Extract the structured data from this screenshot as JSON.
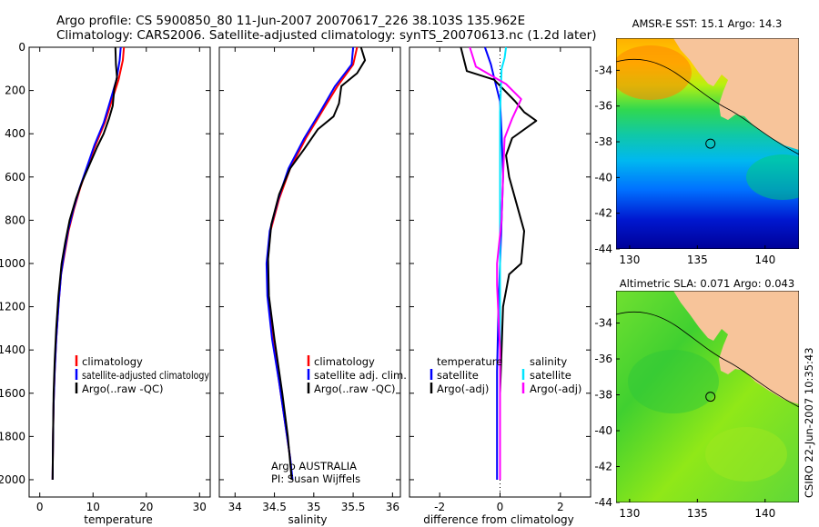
{
  "header": {
    "line1": "Argo profile: CS 5900850_80 11-Jun-2007 20070617_226 38.103S 135.962E",
    "line2": "Climatology: CARS2006. Satellite-adjusted climatology: synTS_20070613.nc (1.2d later)"
  },
  "colors": {
    "climatology": "#ff0000",
    "satellite": "#0000ff",
    "argo": "#000000",
    "salinity_sat": "#00e5ff",
    "salinity_argo": "#ff00ff"
  },
  "chart_data": [
    {
      "id": "temperature",
      "type": "line",
      "xlabel": "temperature",
      "xlim": [
        -2,
        32
      ],
      "ylim": [
        0,
        2080
      ],
      "xticks": [
        0,
        10,
        20,
        30
      ],
      "yticks": [
        0,
        200,
        400,
        600,
        800,
        1000,
        1200,
        1400,
        1600,
        1800,
        2000
      ],
      "series": [
        {
          "name": "climatology",
          "color": "#ff0000",
          "x": [
            15.8,
            15.6,
            14.8,
            13.5,
            12.2,
            10.5,
            9.0,
            7.6,
            6.4,
            5.4,
            4.7,
            4.0,
            3.5,
            3.1,
            2.8,
            2.6,
            2.5,
            2.4
          ],
          "y": [
            0,
            60,
            150,
            250,
            350,
            450,
            550,
            650,
            750,
            850,
            950,
            1050,
            1200,
            1350,
            1500,
            1650,
            1800,
            2000
          ]
        },
        {
          "name": "satellite-adjusted climatology",
          "color": "#0000ff",
          "x": [
            15.2,
            15.0,
            14.4,
            13.2,
            12.0,
            10.3,
            8.9,
            7.5,
            6.3,
            5.3,
            4.6,
            4.0,
            3.5,
            3.1,
            2.8,
            2.6,
            2.5,
            2.4
          ],
          "y": [
            0,
            60,
            150,
            250,
            350,
            450,
            550,
            650,
            750,
            850,
            950,
            1050,
            1200,
            1350,
            1500,
            1650,
            1800,
            2000
          ]
        },
        {
          "name": "Argo(..raw -QC)",
          "color": "#000000",
          "x": [
            14.2,
            14.3,
            14.5,
            14.0,
            13.7,
            13.0,
            12.0,
            10.8,
            9.4,
            8.0,
            6.8,
            5.6,
            4.8,
            4.1,
            3.5,
            3.1,
            2.8,
            2.6,
            2.5,
            2.4
          ],
          "y": [
            0,
            80,
            140,
            190,
            270,
            330,
            400,
            460,
            540,
            620,
            700,
            800,
            900,
            1000,
            1150,
            1300,
            1450,
            1600,
            1800,
            2000
          ]
        }
      ]
    },
    {
      "id": "salinity",
      "type": "line",
      "xlabel": "salinity",
      "xlim": [
        33.8,
        36.1
      ],
      "ylim": [
        0,
        2080
      ],
      "xticks": [
        34,
        34.5,
        35,
        35.5,
        36
      ],
      "xticklabels": [
        "34",
        "34.5",
        "35",
        "35.5",
        "36"
      ],
      "series": [
        {
          "name": "climatology",
          "color": "#ff0000",
          "x": [
            35.55,
            35.5,
            35.3,
            35.1,
            34.9,
            34.7,
            34.56,
            34.45,
            34.41,
            34.42,
            34.48,
            34.56,
            34.64,
            34.7,
            34.72
          ],
          "y": [
            0,
            80,
            180,
            300,
            420,
            560,
            700,
            850,
            1000,
            1150,
            1350,
            1550,
            1750,
            1900,
            2000
          ]
        },
        {
          "name": "satellite adj. clim.",
          "color": "#0000ff",
          "x": [
            35.5,
            35.48,
            35.27,
            35.08,
            34.88,
            34.68,
            34.55,
            34.44,
            34.4,
            34.41,
            34.47,
            34.56,
            34.64,
            34.7,
            34.73
          ],
          "y": [
            0,
            80,
            180,
            300,
            420,
            560,
            700,
            850,
            1000,
            1150,
            1350,
            1550,
            1750,
            1900,
            2000
          ]
        },
        {
          "name": "Argo(..raw -QC)",
          "color": "#000000",
          "x": [
            35.6,
            35.65,
            35.55,
            35.35,
            35.32,
            35.25,
            35.05,
            34.88,
            34.7,
            34.56,
            34.46,
            34.42,
            34.43,
            34.5,
            34.6,
            34.67,
            34.72
          ],
          "y": [
            0,
            60,
            120,
            180,
            260,
            320,
            380,
            470,
            560,
            680,
            820,
            980,
            1150,
            1350,
            1600,
            1800,
            2000
          ]
        }
      ]
    },
    {
      "id": "difference",
      "type": "line",
      "xlabel": "difference from climatology",
      "xlim": [
        -3,
        3
      ],
      "ylim": [
        0,
        2080
      ],
      "xticks": [
        -2,
        0,
        2
      ],
      "xticklabels": [
        "-2",
        "0",
        "2"
      ],
      "series": [
        {
          "name": "temperature satellite",
          "color": "#0000ff",
          "x": [
            -0.5,
            -0.4,
            -0.3,
            -0.2,
            0,
            0.05,
            0.1,
            0.05,
            0,
            -0.05,
            -0.1,
            -0.1,
            -0.1
          ],
          "y": [
            0,
            40,
            80,
            140,
            250,
            400,
            600,
            800,
            1000,
            1200,
            1500,
            1800,
            2000
          ]
        },
        {
          "name": "temperature Argo(-adj)",
          "color": "#000000",
          "x": [
            -1.3,
            -1.1,
            -0.2,
            0.5,
            0.8,
            1.2,
            0.4,
            0.2,
            0.3,
            0.8,
            0.7,
            0.3,
            0.1,
            0.05,
            0,
            0,
            0
          ],
          "y": [
            0,
            110,
            150,
            250,
            300,
            340,
            420,
            500,
            600,
            850,
            1000,
            1050,
            1200,
            1400,
            1600,
            1800,
            2000
          ]
        },
        {
          "name": "salinity satellite",
          "color": "#00e5ff",
          "x": [
            0.2,
            0.15,
            0.05,
            0,
            0,
            0,
            0
          ],
          "y": [
            0,
            50,
            100,
            300,
            800,
            1500,
            2000
          ]
        },
        {
          "name": "salinity Argo(-adj)",
          "color": "#ff00ff",
          "x": [
            -1.0,
            -0.8,
            0.2,
            0.7,
            0.4,
            0.15,
            0.1,
            0.05,
            -0.1,
            -0.1,
            0,
            0
          ],
          "y": [
            0,
            90,
            170,
            240,
            330,
            420,
            600,
            800,
            1000,
            1100,
            1400,
            2000
          ]
        }
      ]
    }
  ],
  "legends": {
    "temperature": [
      "climatology",
      "satellite-adjusted climatology",
      "Argo(..raw -QC)"
    ],
    "salinity": [
      "climatology",
      "satellite adj. clim.",
      "Argo(..raw -QC)"
    ],
    "difference_temp_title": "temperature",
    "difference_sal_title": "salinity",
    "difference_temp": [
      "satellite",
      "Argo(-adj)"
    ],
    "difference_sal": [
      "satellite",
      "Argo(-adj)"
    ]
  },
  "credits": {
    "line1": "Argo AUSTRALIA",
    "line2": "PI: Susan Wijffels"
  },
  "maps": {
    "sst_title": "AMSR-E SST: 15.1 Argo: 14.3",
    "sla_title": "Altimetric SLA: 0.071 Argo: 0.043",
    "xticks": [
      130,
      135,
      140
    ],
    "yticks": [
      -34,
      -36,
      -38,
      -40,
      -42,
      -44
    ],
    "xlim": [
      129.0,
      142.5
    ],
    "ylim": [
      -44,
      -32.2
    ],
    "profile_lon": 135.962,
    "profile_lat": -38.103
  },
  "stamp": "CSIRO 22-Jun-2007 10:35:43"
}
